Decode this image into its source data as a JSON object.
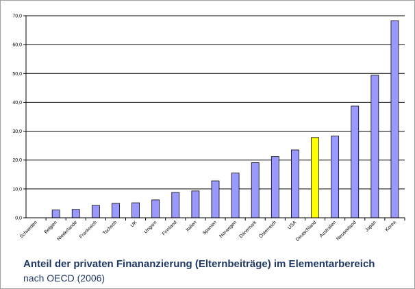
{
  "chart_data": {
    "type": "bar",
    "title": "Anteil der privaten Finananzierung (Elternbeiträge) im Elementarbereich",
    "subtitle": "nach OECD (2006)",
    "xlabel": "",
    "ylabel": "",
    "ylim": [
      0,
      70
    ],
    "yticks": [
      "0,0",
      "10,0",
      "20,0",
      "30,0",
      "40,0",
      "50,0",
      "60,0",
      "70,0"
    ],
    "grid": true,
    "legend": "none",
    "categories": [
      "Schweden",
      "Belgien",
      "Niederlande",
      "Frankreich",
      "Tschech",
      "UK",
      "Ungarn",
      "Finnland",
      "Italien",
      "Spanien",
      "Norwegen",
      "Dänemark",
      "Österreich",
      "USA",
      "Deutschland",
      "Australien",
      "Neuseeland",
      "Japan",
      "Korea"
    ],
    "values": [
      0.0,
      2.7,
      2.9,
      4.3,
      5.0,
      5.2,
      6.2,
      8.8,
      9.3,
      12.8,
      15.5,
      19.1,
      21.2,
      23.5,
      27.8,
      28.3,
      38.7,
      49.4,
      68.3
    ],
    "bar_color": "#9999ff",
    "highlight_category": "Deutschland",
    "highlight_color": "#ffff00"
  }
}
